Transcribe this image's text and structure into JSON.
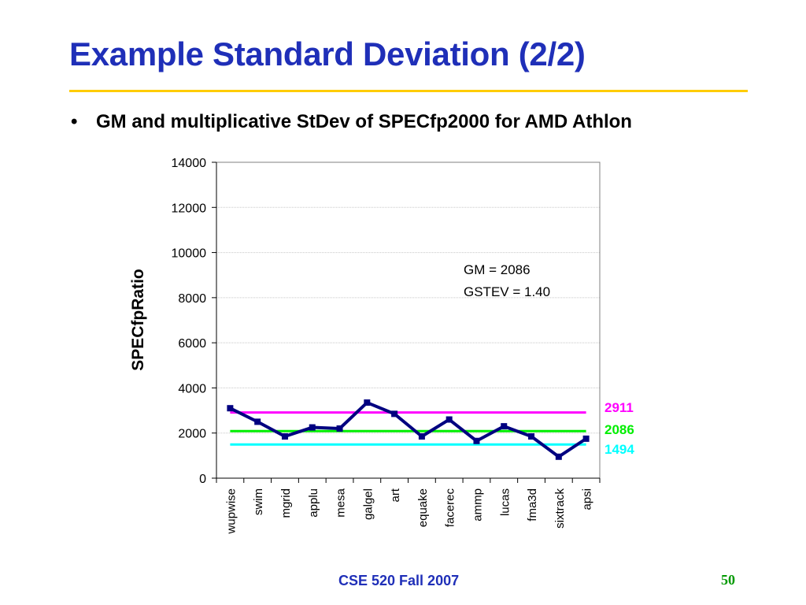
{
  "slide": {
    "title": "Example Standard Deviation (2/2)",
    "bullet_marker": "•",
    "bullet": "GM and multiplicative StDev of SPECfp2000 for AMD Athlon",
    "footer": "CSE 520 Fall 2007",
    "page_number": "50",
    "title_color": "#1f2fb8",
    "rule_color": "#ffcc00"
  },
  "chart_data": {
    "type": "line",
    "title": "",
    "xlabel": "",
    "ylabel": "SPECfpRatio",
    "ylim": [
      0,
      14000
    ],
    "yticks": [
      "0",
      "2000",
      "4000",
      "6000",
      "8000",
      "10000",
      "12000",
      "14000"
    ],
    "grid": true,
    "categories": [
      "wupwise",
      "swim",
      "mgrid",
      "applu",
      "mesa",
      "galgel",
      "art",
      "equake",
      "facerec",
      "ammp",
      "lucas",
      "fma3d",
      "sixtrack",
      "apsi"
    ],
    "series": [
      {
        "color": "#000080",
        "marker": "square",
        "values": [
          3100,
          2500,
          1850,
          2250,
          2200,
          3350,
          2850,
          1850,
          2600,
          1650,
          2300,
          1850,
          950,
          1750
        ]
      }
    ],
    "reference_lines": [
      {
        "value": 2911,
        "label": "2911",
        "color": "#ff00ff"
      },
      {
        "value": 2086,
        "label": "2086",
        "color": "#00ee00"
      },
      {
        "value": 1494,
        "label": "1494",
        "color": "#00ffff"
      }
    ],
    "annotations": [
      "GM = 2086",
      "GSTEV = 1.40"
    ]
  }
}
